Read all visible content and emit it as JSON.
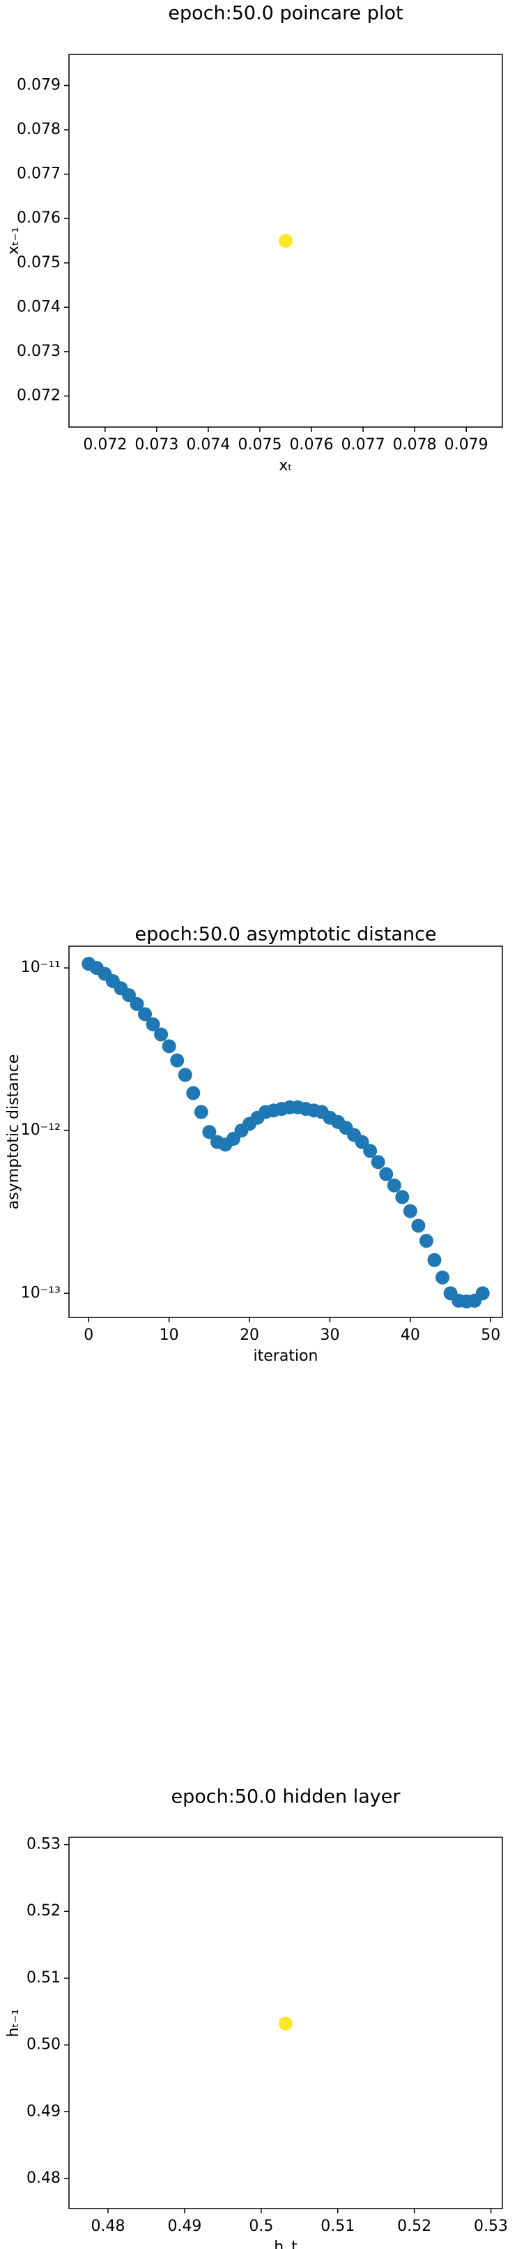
{
  "chart_data": [
    {
      "type": "scatter",
      "title": "epoch:50.0 poincare plot",
      "x_label": "xₜ",
      "y_label": "xₜ₋₁",
      "x": [
        0.0755
      ],
      "values": [
        0.0755
      ],
      "color": "#fde725",
      "xlim": [
        0.0713,
        0.0797
      ],
      "ylim": [
        0.0713,
        0.0797
      ],
      "xticks": [
        0.072,
        0.073,
        0.074,
        0.075,
        0.076,
        0.077,
        0.078,
        0.079
      ],
      "yticks": [
        0.072,
        0.073,
        0.074,
        0.075,
        0.076,
        0.077,
        0.078,
        0.079
      ],
      "log_y": false
    },
    {
      "type": "scatter",
      "title": "epoch:50.0 asymptotic distance",
      "x_label": "iteration",
      "y_label": "asymptotic distance",
      "x": [
        0,
        1,
        2,
        3,
        4,
        5,
        6,
        7,
        8,
        9,
        10,
        11,
        12,
        13,
        14,
        15,
        16,
        17,
        18,
        19,
        20,
        21,
        22,
        23,
        24,
        25,
        26,
        27,
        28,
        29,
        30,
        31,
        32,
        33,
        34,
        35,
        36,
        37,
        38,
        39,
        40,
        41,
        42,
        43,
        44,
        45,
        46,
        47,
        48,
        49
      ],
      "values": [
        1.06e-11,
        1e-11,
        9.2e-12,
        8.3e-12,
        7.5e-12,
        6.8e-12,
        6e-12,
        5.2e-12,
        4.5e-12,
        3.9e-12,
        3.3e-12,
        2.7e-12,
        2.2e-12,
        1.7e-12,
        1.3e-12,
        9.8e-13,
        8.5e-13,
        8.2e-13,
        8.9e-13,
        1e-12,
        1.1e-12,
        1.2e-12,
        1.3e-12,
        1.33e-12,
        1.36e-12,
        1.39e-12,
        1.39e-12,
        1.36e-12,
        1.33e-12,
        1.3e-12,
        1.2e-12,
        1.13e-12,
        1.04e-12,
        9.4e-13,
        8.5e-13,
        7.5e-13,
        6.4e-13,
        5.4e-13,
        4.6e-13,
        3.9e-13,
        3.2e-13,
        2.6e-13,
        2.1e-13,
        1.6e-13,
        1.25e-13,
        1e-13,
        9e-14,
        8.9e-14,
        9e-14,
        1e-13
      ],
      "color": "#1f77b4",
      "xlim": [
        -2.45,
        51.45
      ],
      "ylim": [
        7.1e-14,
        1.36e-11
      ],
      "xticks": [
        0,
        10,
        20,
        30,
        40,
        50
      ],
      "yticks": [
        {
          "value": 1e-13,
          "label": "10⁻¹³"
        },
        {
          "value": 1e-12,
          "label": "10⁻¹²"
        },
        {
          "value": 1e-11,
          "label": "10⁻¹¹"
        }
      ],
      "log_y": true
    },
    {
      "type": "scatter",
      "title": "epoch:50.0 hidden layer",
      "x_label": "h_t",
      "y_label": "hₜ₋₁",
      "x": [
        0.5032
      ],
      "values": [
        0.5032
      ],
      "color": "#fde725",
      "xlim": [
        0.4749,
        0.5315
      ],
      "ylim": [
        0.4755,
        0.5311
      ],
      "xticks": [
        0.48,
        0.49,
        0.5,
        {
          "value": 0.51,
          "label": "0.51"
        },
        0.52,
        0.53
      ],
      "yticks": [
        0.48,
        0.49,
        {
          "value": 0.5,
          "label": "0.50"
        },
        0.51,
        0.52,
        0.53
      ],
      "log_y": false
    }
  ]
}
